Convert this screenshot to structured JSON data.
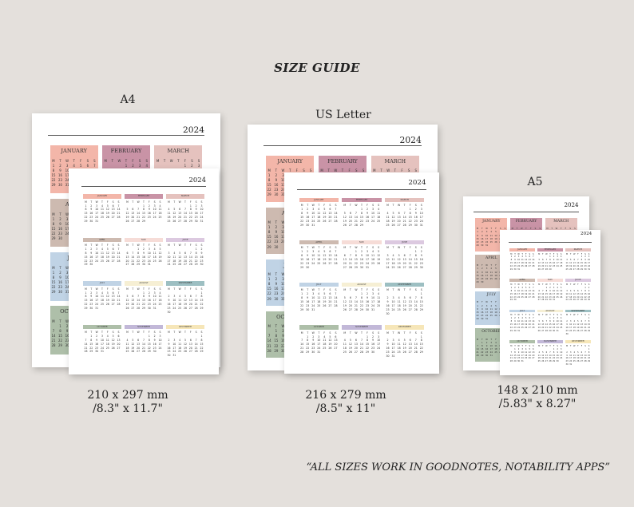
{
  "header": {
    "title": "SIZE GUIDE"
  },
  "year": "2024",
  "months": [
    "JANUARY",
    "FEBRUARY",
    "MARCH",
    "APRIL",
    "MAY",
    "JUNE",
    "JULY",
    "AUGUST",
    "SEPTEMBER",
    "OCTOBER",
    "NOVEMBER",
    "DECEMBER"
  ],
  "weekdays": [
    "M",
    "T",
    "W",
    "T",
    "F",
    "S",
    "S"
  ],
  "colors": {
    "january": "#f3b6a9",
    "february": "#c993a6",
    "march": "#e5c2be",
    "april": "#cdbab0",
    "may": "#f6dcd7",
    "june": "#dcc9e0",
    "july": "#c0d3e5",
    "august": "#f6efd4",
    "september": "#9dbfc2",
    "october": "#aebfa9",
    "november": "#c2b8d8",
    "december": "#f6e6b8"
  },
  "sizes": [
    {
      "name": "A4",
      "metric": "210 x 297 mm",
      "imperial": "/8.3\" x 11.7\""
    },
    {
      "name": "US Letter",
      "metric": "216 x 279 mm",
      "imperial": "/8.5\" x 11\""
    },
    {
      "name": "A5",
      "metric": "148 x 210 mm",
      "imperial": "/5.83\" x 8.27\""
    }
  ],
  "footer": {
    "note": "“ALL SIZES WORK IN GOODNOTES, NOTABILITY APPS”"
  }
}
